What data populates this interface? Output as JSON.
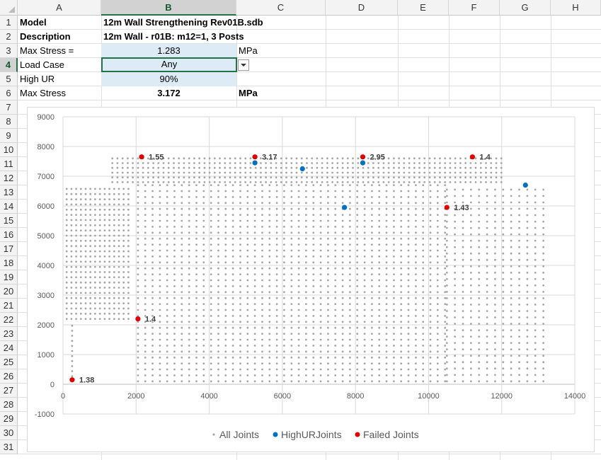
{
  "columns": [
    "A",
    "B",
    "C",
    "D",
    "E",
    "F",
    "G",
    "H"
  ],
  "rows": [
    "1",
    "2",
    "3",
    "4",
    "5",
    "6",
    "7",
    "8",
    "9",
    "10",
    "11",
    "12",
    "13",
    "14",
    "15",
    "16",
    "17",
    "18",
    "19",
    "20",
    "21",
    "22",
    "23",
    "24",
    "25",
    "26",
    "27",
    "28",
    "29",
    "30",
    "31"
  ],
  "cells": {
    "model_label": "Model",
    "model_value": "12m Wall Strengthening Rev01B.sdb",
    "description_label": "Description",
    "description_value": "12m Wall - r01B: m12=1, 3 Posts",
    "max_stress_input_label": "Max Stress =",
    "max_stress_input_value": "1.283",
    "max_stress_input_unit": "MPa",
    "load_case_label": "Load Case",
    "load_case_value": "Any",
    "high_ur_label": "High UR",
    "high_ur_value": "90%",
    "max_stress_label": "Max Stress",
    "max_stress_value": "3.172",
    "max_stress_unit": "MPa"
  },
  "colors": {
    "all_joints": "#a6a6a6",
    "high_ur_joints": "#0070c0",
    "failed_joints": "#e00000",
    "cell_fill": "#ddebf7",
    "selection": "#217346"
  },
  "chart_data": {
    "type": "scatter",
    "xlim": [
      0,
      14000
    ],
    "ylim": [
      -1000,
      9000
    ],
    "x_ticks": [
      "0",
      "2000",
      "4000",
      "6000",
      "8000",
      "10000",
      "12000",
      "14000"
    ],
    "y_ticks": [
      "9000",
      "8000",
      "7000",
      "6000",
      "5000",
      "4000",
      "3000",
      "2000",
      "1000",
      "0",
      "-1000"
    ],
    "grid": true,
    "legend_position": "bottom",
    "series": [
      {
        "name": "All Joints",
        "kind": "grid-mesh",
        "regions": [
          {
            "x0": 100,
            "x1": 1850,
            "y0": 2200,
            "y1": 6700,
            "dx": 130,
            "dy": 175
          },
          {
            "x0": 2050,
            "x1": 10500,
            "y0": 100,
            "y1": 6700,
            "dx": 200,
            "dy": 200
          },
          {
            "x0": 10500,
            "x1": 13200,
            "y0": 100,
            "y1": 6700,
            "dx": 220,
            "dy": 215
          },
          {
            "x0": 1350,
            "x1": 12000,
            "y0": 6800,
            "y1": 7600,
            "dx": 140,
            "dy": 160
          },
          {
            "x0": 250,
            "x1": 250,
            "y0": 100,
            "y1": 2100,
            "dx": 130,
            "dy": 170
          }
        ]
      },
      {
        "name": "HighURJoints",
        "points": [
          [
            5250,
            7450
          ],
          [
            6550,
            7250
          ],
          [
            7700,
            5950
          ],
          [
            8200,
            7450
          ],
          [
            12650,
            6700
          ]
        ]
      },
      {
        "name": "Failed Joints",
        "points": [
          [
            250,
            150
          ],
          [
            2050,
            2200
          ],
          [
            2150,
            7650
          ],
          [
            5250,
            7650
          ],
          [
            8200,
            7650
          ],
          [
            10500,
            5950
          ],
          [
            11200,
            7650
          ]
        ],
        "labels": [
          "1.38",
          "1.4",
          "1.55",
          "3.17",
          "2.95",
          "1.43",
          "1.4"
        ]
      }
    ]
  }
}
